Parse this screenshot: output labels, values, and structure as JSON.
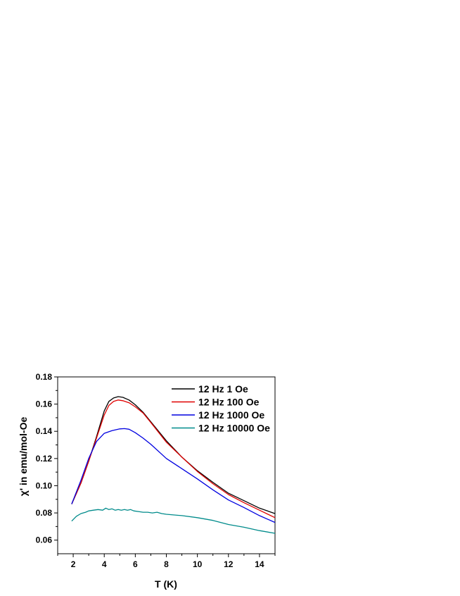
{
  "chart_data": {
    "type": "line",
    "title": "",
    "xlabel": "T (K)",
    "ylabel": "χ' in emu/mol-Oe",
    "xlim": [
      1,
      15
    ],
    "ylim": [
      0.05,
      0.18
    ],
    "xticks": [
      2,
      4,
      6,
      8,
      10,
      12,
      14
    ],
    "xtick_labels": [
      "2",
      "4",
      "6",
      "8",
      "10",
      "12",
      "14"
    ],
    "yticks": [
      0.06,
      0.08,
      0.1,
      0.12,
      0.14,
      0.16,
      0.18
    ],
    "ytick_labels": [
      "0.06",
      "0.08",
      "0.10",
      "0.12",
      "0.14",
      "0.16",
      "0.18"
    ],
    "grid": false,
    "legend_position": "top-right",
    "series": [
      {
        "name": "12 Hz 1 Oe",
        "color": "#000000",
        "x": [
          1.9,
          2.5,
          3.0,
          3.5,
          4.0,
          4.3,
          4.6,
          4.9,
          5.2,
          5.6,
          6.0,
          6.5,
          7.0,
          8.0,
          9.0,
          10.0,
          11.0,
          12.0,
          13.0,
          14.0,
          15.0
        ],
        "y": [
          0.0865,
          0.102,
          0.118,
          0.136,
          0.155,
          0.162,
          0.1645,
          0.1655,
          0.165,
          0.163,
          0.1595,
          0.154,
          0.147,
          0.133,
          0.121,
          0.111,
          0.1025,
          0.0945,
          0.089,
          0.0835,
          0.0795
        ]
      },
      {
        "name": "12 Hz 100 Oe",
        "color": "#e00000",
        "x": [
          1.9,
          2.5,
          3.0,
          3.5,
          4.0,
          4.3,
          4.6,
          4.9,
          5.2,
          5.6,
          6.0,
          6.5,
          7.0,
          8.0,
          9.0,
          10.0,
          11.0,
          12.0,
          13.0,
          14.0,
          15.0
        ],
        "y": [
          0.0865,
          0.102,
          0.118,
          0.135,
          0.152,
          0.159,
          0.162,
          0.163,
          0.1625,
          0.161,
          0.158,
          0.1535,
          0.1465,
          0.132,
          0.121,
          0.1105,
          0.1015,
          0.0935,
          0.0875,
          0.082,
          0.0765
        ]
      },
      {
        "name": "12 Hz 1000 Oe",
        "color": "#0000e0",
        "x": [
          1.9,
          2.5,
          3.0,
          3.5,
          4.0,
          4.5,
          5.0,
          5.3,
          5.6,
          6.0,
          6.5,
          7.0,
          8.0,
          9.0,
          10.0,
          11.0,
          12.0,
          13.0,
          14.0,
          15.0
        ],
        "y": [
          0.0865,
          0.104,
          0.12,
          0.1325,
          0.1385,
          0.1405,
          0.1418,
          0.142,
          0.1415,
          0.139,
          0.135,
          0.1305,
          0.12,
          0.1125,
          0.105,
          0.097,
          0.0895,
          0.084,
          0.078,
          0.073
        ]
      },
      {
        "name": "12 Hz 10000 Oe",
        "color": "#008b8b",
        "x": [
          1.9,
          2.2,
          2.5,
          2.8,
          3.0,
          3.3,
          3.6,
          3.9,
          4.1,
          4.3,
          4.5,
          4.7,
          4.9,
          5.1,
          5.3,
          5.5,
          5.7,
          5.9,
          6.2,
          6.5,
          6.8,
          7.1,
          7.4,
          7.7,
          8.0,
          9.0,
          10.0,
          11.0,
          12.0,
          13.0,
          14.0,
          15.0
        ],
        "y": [
          0.074,
          0.0775,
          0.0795,
          0.0805,
          0.0815,
          0.082,
          0.0825,
          0.082,
          0.0835,
          0.0825,
          0.083,
          0.082,
          0.0825,
          0.082,
          0.0825,
          0.082,
          0.0825,
          0.0815,
          0.081,
          0.0805,
          0.0805,
          0.08,
          0.0805,
          0.0795,
          0.079,
          0.078,
          0.0765,
          0.0745,
          0.0715,
          0.0695,
          0.067,
          0.065
        ]
      }
    ]
  }
}
